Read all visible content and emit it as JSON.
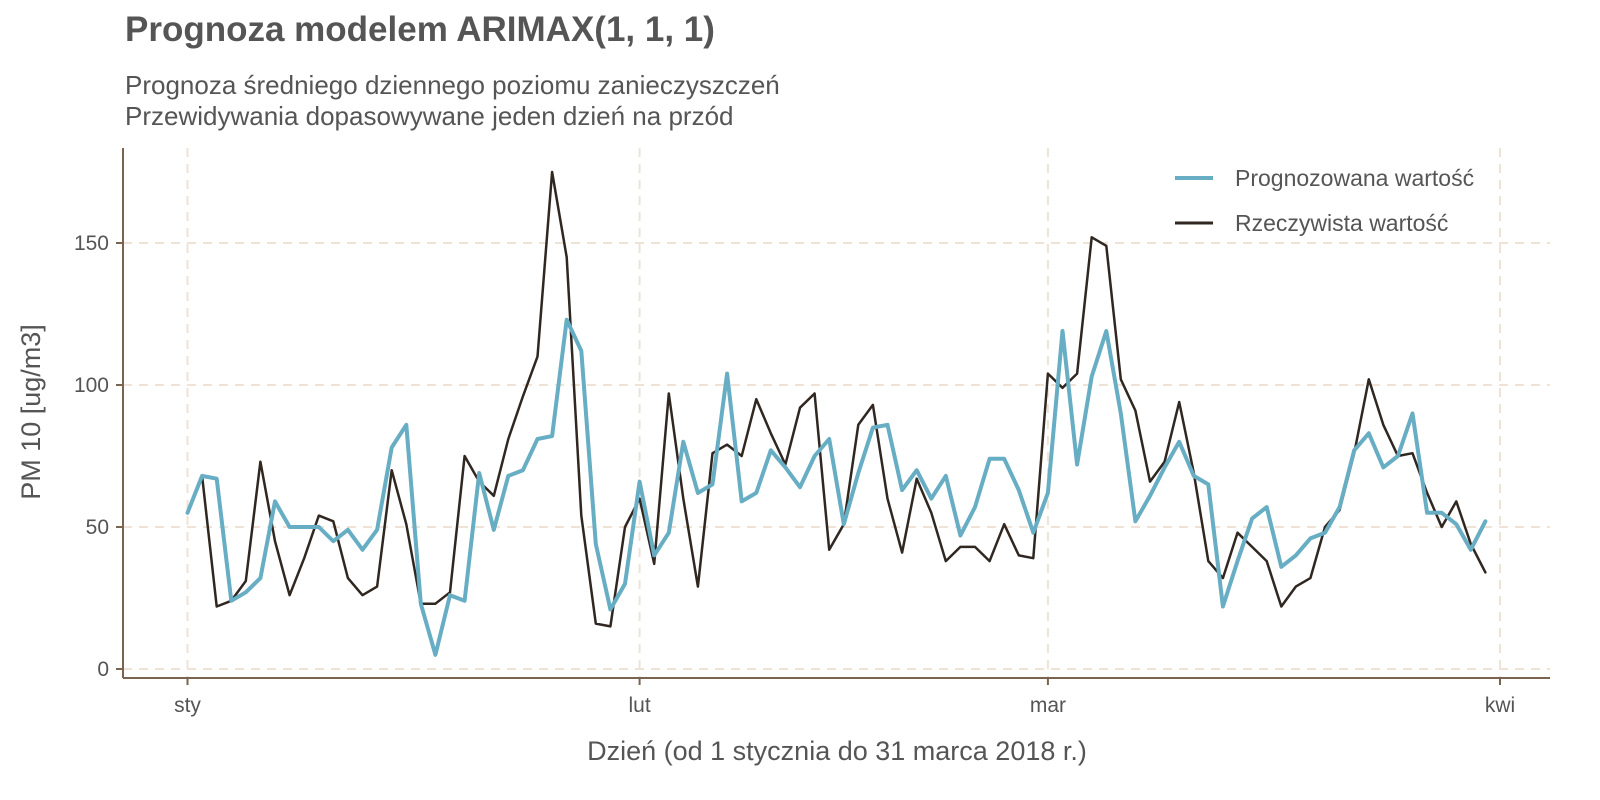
{
  "chart_data": {
    "type": "line",
    "title": "Prognoza modelem ARIMAX(1, 1, 1)",
    "subtitle": [
      "Prognoza średniego dziennego poziomu zanieczyszczeń",
      "Przewidywania dopasowywane jeden dzień na przód"
    ],
    "xlabel": "Dzień (od 1 stycznia do 31 marca 2018 r.)",
    "ylabel": "PM 10 [ug/m3]",
    "x_ticks": [
      {
        "day": 1,
        "label": "sty"
      },
      {
        "day": 32,
        "label": "lut"
      },
      {
        "day": 60,
        "label": "mar"
      },
      {
        "day": 91,
        "label": "kwi"
      }
    ],
    "y_ticks": [
      0,
      50,
      100,
      150
    ],
    "xlim": [
      1,
      91
    ],
    "ylim": [
      0,
      175
    ],
    "grid": true,
    "legend_position": "top-right",
    "colors": {
      "forecast": "#67adc3",
      "actual": "#302721",
      "grid": "#efe3d8",
      "axis": "#7a6450"
    },
    "x": [
      1,
      2,
      3,
      4,
      5,
      6,
      7,
      8,
      9,
      10,
      11,
      12,
      13,
      14,
      15,
      16,
      17,
      18,
      19,
      20,
      21,
      22,
      23,
      24,
      25,
      26,
      27,
      28,
      29,
      30,
      31,
      32,
      33,
      34,
      35,
      36,
      37,
      38,
      39,
      40,
      41,
      42,
      43,
      44,
      45,
      46,
      47,
      48,
      49,
      50,
      51,
      52,
      53,
      54,
      55,
      56,
      57,
      58,
      59,
      60,
      61,
      62,
      63,
      64,
      65,
      66,
      67,
      68,
      69,
      70,
      71,
      72,
      73,
      74,
      75,
      76,
      77,
      78,
      79,
      80,
      81,
      82,
      83,
      84,
      85,
      86,
      87,
      88,
      89,
      90
    ],
    "series": [
      {
        "name": "Rzeczywista wartość",
        "values": [
          55,
          68,
          22,
          24,
          31,
          73,
          45,
          26,
          39,
          54,
          52,
          32,
          26,
          29,
          70,
          51,
          23,
          23,
          27,
          75,
          66,
          61,
          81,
          96,
          110,
          175,
          145,
          54,
          16,
          15,
          50,
          60,
          37,
          97,
          60,
          29,
          76,
          79,
          75,
          95,
          83,
          72,
          92,
          97,
          42,
          51,
          86,
          93,
          60,
          41,
          67,
          55,
          38,
          43,
          43,
          38,
          51,
          40,
          39,
          104,
          99,
          104,
          152,
          149,
          102,
          91,
          66,
          73,
          94,
          69,
          38,
          32,
          48,
          43,
          38,
          22,
          29,
          32,
          50,
          56,
          76,
          102,
          86,
          75,
          76,
          62,
          50,
          59,
          44,
          34
        ]
      },
      {
        "name": "Prognozowana wartość",
        "values": [
          55,
          68,
          67,
          24,
          27,
          32,
          59,
          50,
          50,
          50,
          45,
          49,
          42,
          49,
          78,
          86,
          23,
          5,
          26,
          24,
          69,
          49,
          68,
          70,
          81,
          82,
          123,
          112,
          44,
          21,
          30,
          66,
          40,
          48,
          80,
          62,
          65,
          104,
          59,
          62,
          77,
          71,
          64,
          75,
          81,
          51,
          69,
          85,
          86,
          63,
          70,
          60,
          68,
          47,
          57,
          74,
          74,
          63,
          48,
          62,
          119,
          72,
          103,
          119,
          90,
          52,
          61,
          71,
          80,
          68,
          65,
          22,
          38,
          53,
          57,
          36,
          40,
          46,
          48,
          57,
          77,
          83,
          71,
          75,
          90,
          55,
          55,
          51,
          42,
          52
        ]
      }
    ]
  }
}
